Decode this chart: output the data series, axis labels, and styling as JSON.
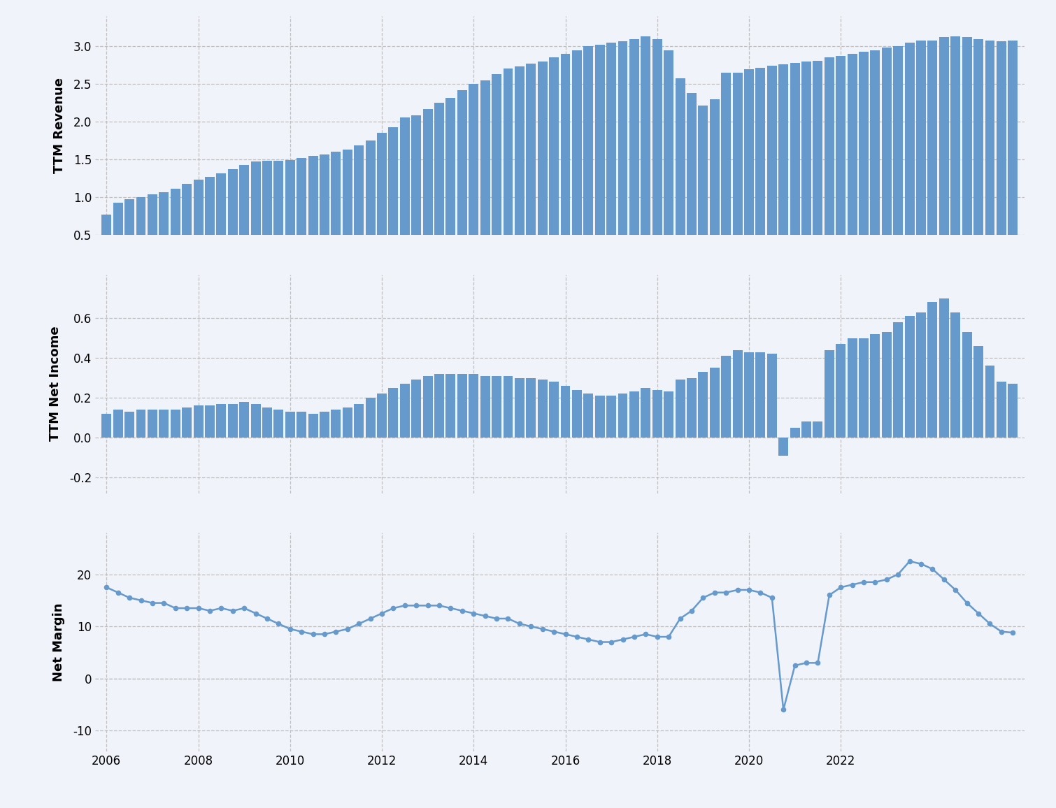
{
  "revenue": [
    0.77,
    0.93,
    0.97,
    1.0,
    1.04,
    1.07,
    1.11,
    1.18,
    1.23,
    1.27,
    1.32,
    1.37,
    1.43,
    1.47,
    1.48,
    1.48,
    1.49,
    1.52,
    1.55,
    1.57,
    1.6,
    1.63,
    1.69,
    1.75,
    1.85,
    1.93,
    2.06,
    2.09,
    2.17,
    2.25,
    2.32,
    2.42,
    2.5,
    2.55,
    2.63,
    2.71,
    2.73,
    2.77,
    2.8,
    2.85,
    2.9,
    2.95,
    3.0,
    3.02,
    3.05,
    3.07,
    3.1,
    3.13,
    3.1,
    2.95,
    2.58,
    2.38,
    2.22,
    2.3,
    2.65,
    2.65,
    2.7,
    2.72,
    2.74,
    2.76,
    2.78,
    2.8,
    2.81,
    2.85,
    2.87,
    2.9,
    2.93,
    2.95,
    2.98,
    3.0,
    3.05,
    3.08,
    3.08,
    3.12,
    3.13,
    3.12,
    3.1,
    3.08,
    3.07,
    3.08
  ],
  "net_income": [
    0.12,
    0.14,
    0.13,
    0.14,
    0.14,
    0.14,
    0.14,
    0.15,
    0.16,
    0.16,
    0.17,
    0.17,
    0.18,
    0.17,
    0.15,
    0.14,
    0.13,
    0.13,
    0.12,
    0.13,
    0.14,
    0.15,
    0.17,
    0.2,
    0.22,
    0.25,
    0.27,
    0.29,
    0.31,
    0.32,
    0.32,
    0.32,
    0.32,
    0.31,
    0.31,
    0.31,
    0.3,
    0.3,
    0.29,
    0.28,
    0.26,
    0.24,
    0.22,
    0.21,
    0.21,
    0.22,
    0.23,
    0.25,
    0.24,
    0.23,
    0.29,
    0.3,
    0.33,
    0.35,
    0.41,
    0.44,
    0.43,
    0.43,
    0.42,
    -0.09,
    0.05,
    0.08,
    0.08,
    0.44,
    0.47,
    0.5,
    0.5,
    0.52,
    0.53,
    0.58,
    0.61,
    0.63,
    0.68,
    0.7,
    0.63,
    0.53,
    0.46,
    0.36,
    0.28,
    0.27
  ],
  "net_margin": [
    17.5,
    16.5,
    15.5,
    15.0,
    14.5,
    14.5,
    13.5,
    13.5,
    13.5,
    13.0,
    13.5,
    13.0,
    13.5,
    12.5,
    11.5,
    10.5,
    9.5,
    9.0,
    8.5,
    8.5,
    9.0,
    9.5,
    10.5,
    11.5,
    12.5,
    13.5,
    14.0,
    14.0,
    14.0,
    14.0,
    13.5,
    13.0,
    12.5,
    12.0,
    11.5,
    11.5,
    10.5,
    10.0,
    9.5,
    9.0,
    8.5,
    8.0,
    7.5,
    7.0,
    7.0,
    7.5,
    8.0,
    8.5,
    8.0,
    8.0,
    11.5,
    13.0,
    15.5,
    16.5,
    16.5,
    17.0,
    17.0,
    16.5,
    15.5,
    -6.0,
    2.5,
    3.0,
    3.0,
    16.0,
    17.5,
    18.0,
    18.5,
    18.5,
    19.0,
    20.0,
    22.5,
    22.0,
    21.0,
    19.0,
    17.0,
    14.5,
    12.5,
    10.5,
    9.0,
    8.8
  ],
  "bar_color": "#6699cc",
  "line_color": "#6699cc",
  "background_color": "#f0f4fa",
  "grid_color": "#bbbbbb",
  "ylabel1": "TTM Revenue",
  "ylabel2": "TTM Net Income",
  "ylabel3": "Net Margin",
  "ylim1": [
    0.5,
    3.4
  ],
  "ylim2": [
    -0.28,
    0.82
  ],
  "ylim3": [
    -14,
    28
  ],
  "yticks1": [
    0.5,
    1.0,
    1.5,
    2.0,
    2.5,
    3.0
  ],
  "yticks2": [
    -0.2,
    0.0,
    0.2,
    0.4,
    0.6
  ],
  "yticks3": [
    -10,
    0,
    10,
    20
  ],
  "xtick_years": [
    2006,
    2008,
    2010,
    2012,
    2014,
    2016,
    2018,
    2020,
    2022
  ],
  "year_start": 2006,
  "n_quarters": 80
}
